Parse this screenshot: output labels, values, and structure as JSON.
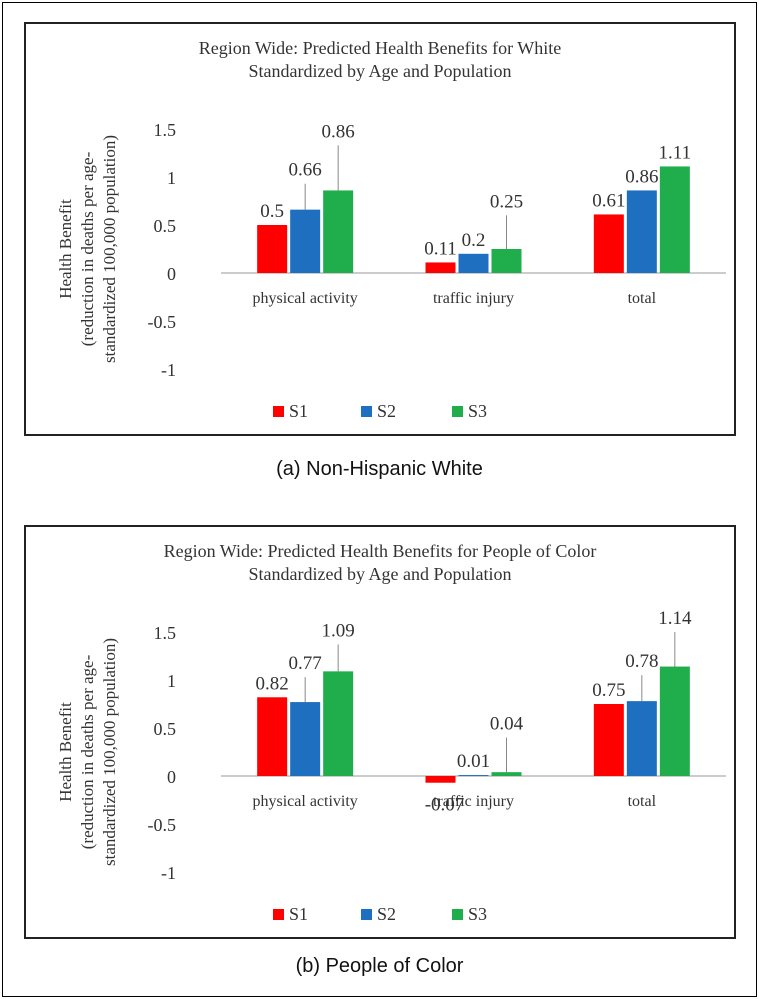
{
  "colors": {
    "S1": "#ff0000",
    "S2": "#1e6fc0",
    "S3": "#1fae4b",
    "text": "#333333",
    "errbar": "#888888",
    "axis": "#999999"
  },
  "chart_data": [
    {
      "type": "bar",
      "title_lines": [
        "Region Wide: Predicted Health Benefits for White",
        "Standardized by Age and Population"
      ],
      "ylabel_lines": [
        "Health Benefit",
        "(reduction in deaths per age-",
        "standardized 100,000 population)"
      ],
      "xlabel": "",
      "categories": [
        "physical activity",
        "traffic injury",
        "total"
      ],
      "series": [
        {
          "name": "S1",
          "values": [
            0.5,
            0.11,
            0.61
          ],
          "labels": [
            "0.5",
            "0.11",
            "0.61"
          ],
          "err_top": [
            0.5,
            0.11,
            0.61
          ]
        },
        {
          "name": "S2",
          "values": [
            0.66,
            0.2,
            0.86
          ],
          "labels": [
            "0.66",
            "0.2",
            "0.86"
          ],
          "err_top": [
            0.93,
            0.2,
            0.86
          ]
        },
        {
          "name": "S3",
          "values": [
            0.86,
            0.25,
            1.11
          ],
          "labels": [
            "0.86",
            "0.25",
            "1.11"
          ],
          "err_top": [
            1.33,
            0.6,
            1.11
          ]
        }
      ],
      "yticks": [
        "1.5",
        "1",
        "0.5",
        "0",
        "-0.5",
        "-1"
      ],
      "ylim": [
        -1.0,
        1.5
      ],
      "grid": false,
      "legend": "bottom",
      "caption": "(a) Non-Hispanic White"
    },
    {
      "type": "bar",
      "title_lines": [
        "Region Wide: Predicted Health Benefits for People of Color",
        "Standardized by Age and Population"
      ],
      "ylabel_lines": [
        "Health Benefit",
        "(reduction in deaths per age-",
        "standardized 100,000 population)"
      ],
      "xlabel": "",
      "categories": [
        "physical activity",
        "traffic injury",
        "total"
      ],
      "series": [
        {
          "name": "S1",
          "values": [
            0.82,
            -0.07,
            0.75
          ],
          "labels": [
            "0.82",
            "-0.07",
            "0.75"
          ],
          "err_top": [
            0.82,
            -0.07,
            0.75
          ]
        },
        {
          "name": "S2",
          "values": [
            0.77,
            0.01,
            0.78
          ],
          "labels": [
            "0.77",
            "0.01",
            "0.78"
          ],
          "err_top": [
            1.03,
            0.01,
            1.05
          ]
        },
        {
          "name": "S3",
          "values": [
            1.09,
            0.04,
            1.14
          ],
          "labels": [
            "1.09",
            "0.04",
            "1.14"
          ],
          "err_top": [
            1.37,
            0.4,
            1.5
          ]
        }
      ],
      "yticks": [
        "1.5",
        "1",
        "0.5",
        "0",
        "-0.5",
        "-1"
      ],
      "ylim": [
        -1.0,
        1.5
      ],
      "grid": false,
      "legend": "bottom",
      "caption": "(b) People of Color"
    }
  ]
}
